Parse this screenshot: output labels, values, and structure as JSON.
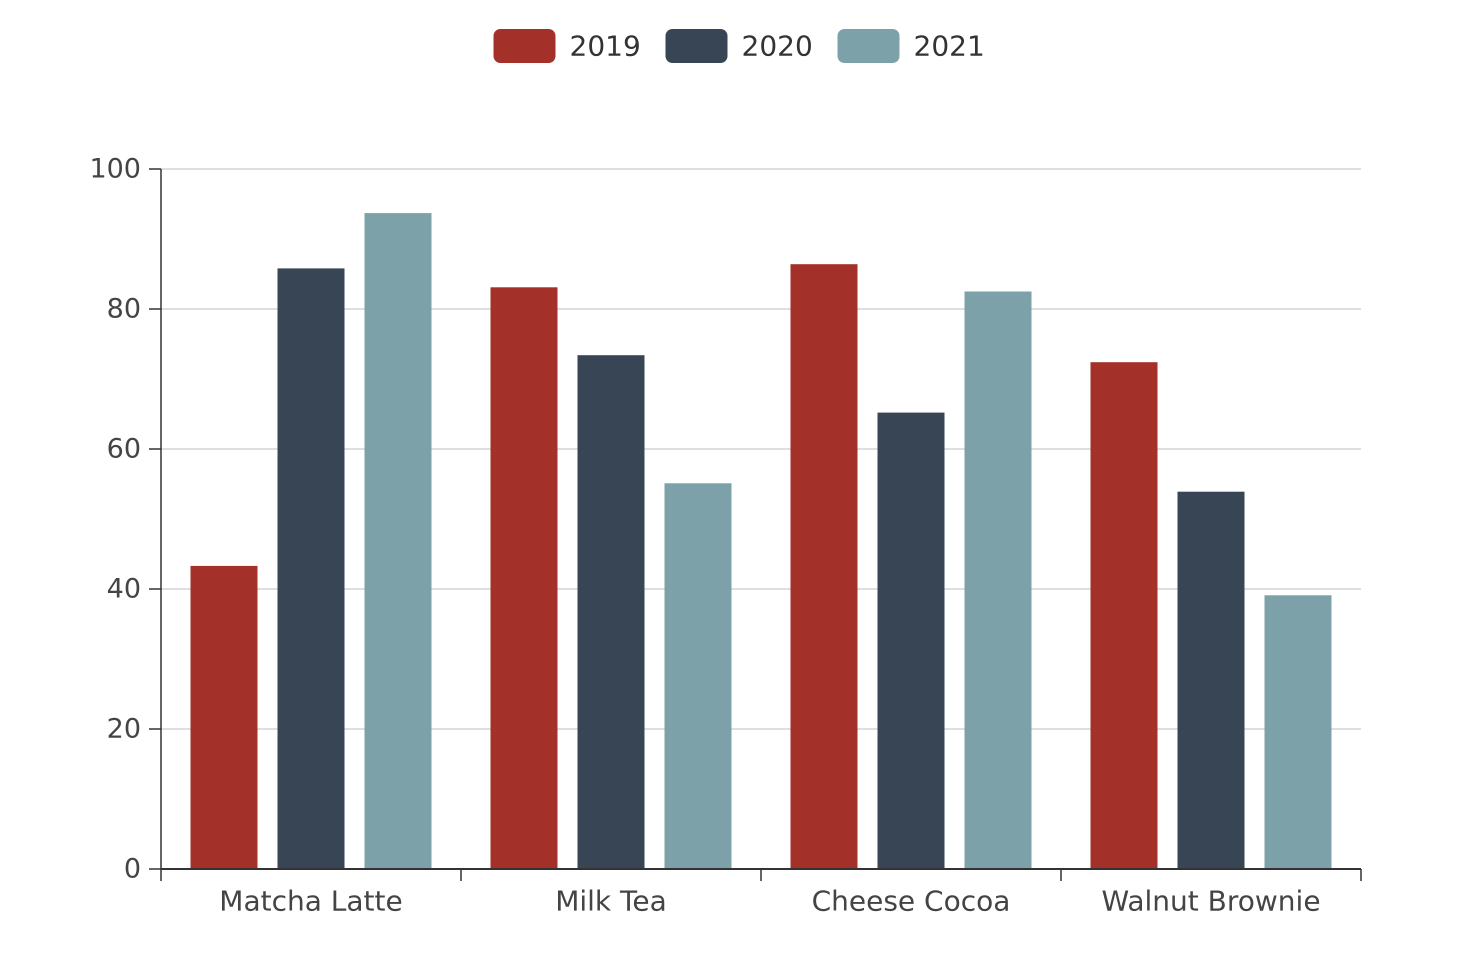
{
  "chart_data": {
    "type": "bar",
    "title": "",
    "xlabel": "",
    "ylabel": "",
    "categories": [
      "Matcha Latte",
      "Milk Tea",
      "Cheese Cocoa",
      "Walnut Brownie"
    ],
    "series": [
      {
        "name": "2019",
        "color": "#a33029",
        "values": [
          43.3,
          83.1,
          86.4,
          72.4
        ]
      },
      {
        "name": "2020",
        "color": "#384554",
        "values": [
          85.8,
          73.4,
          65.2,
          53.9
        ]
      },
      {
        "name": "2021",
        "color": "#7ca1a8",
        "values": [
          93.7,
          55.1,
          82.5,
          39.1
        ]
      }
    ],
    "ylim": [
      0,
      100
    ],
    "yticks": [
      "0",
      "20",
      "40",
      "60",
      "80",
      "100"
    ],
    "grid": true,
    "legend_position": "top-center"
  }
}
